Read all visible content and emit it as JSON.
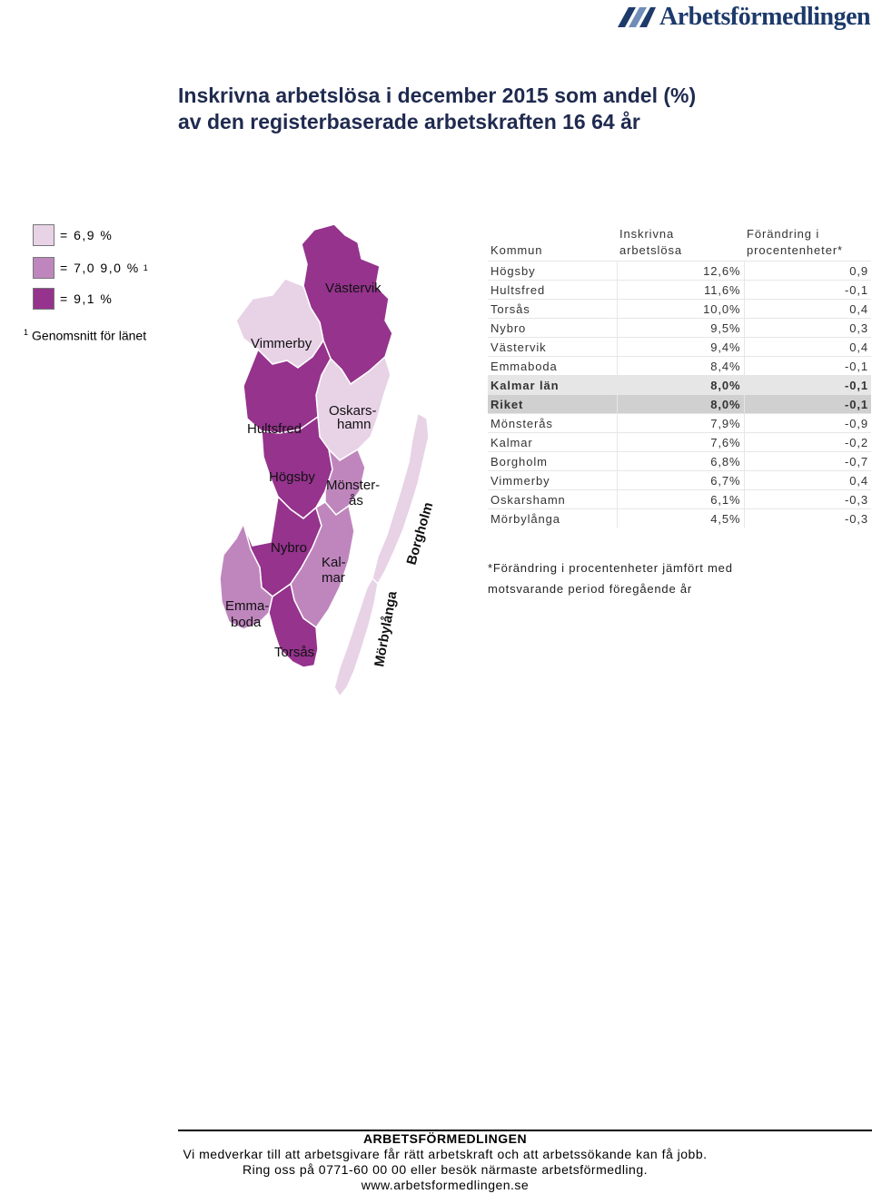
{
  "brand": {
    "name": "Arbetsförmedlingen",
    "color": "#1d3a6b"
  },
  "title": {
    "line1": "Inskrivna arbetslösa i december 2015 som andel (%)",
    "line2": "av den registerbaserade arbetskraften 16 64 år"
  },
  "legend": {
    "items": [
      {
        "label": "=     6,9 %",
        "color": "#e8d2e6"
      },
      {
        "label": "= 7,0  9,0 %",
        "color": "#bf86bd"
      },
      {
        "label": "= 9,1 %",
        "color": "#95338d"
      }
    ],
    "footnote_mark": "1",
    "footnote": "Genomsnitt för länet"
  },
  "map": {
    "labels": {
      "vastervik": "Västervik",
      "vimmerby": "Vimmerby",
      "oskarshamn_1": "Oskars-",
      "oskarshamn_2": "hamn",
      "hultsfred": "Hultsfred",
      "hogsby": "Högsby",
      "monsteras_1": "Mönster-",
      "monsteras_2": "ås",
      "nybro": "Nybro",
      "kalmar_1": "Kal-",
      "kalmar_2": "mar",
      "emmaboda_1": "Emma-",
      "emmaboda_2": "boda",
      "torsas": "Torsås",
      "borgholm": "Borgholm",
      "morbylanga": "Mörbylånga"
    }
  },
  "table": {
    "headers": {
      "kommun": "Kommun",
      "col2_1": "Inskrivna",
      "col2_2": "arbetslösa",
      "col3_1": "Förändring i",
      "col3_2": "procentenheter*"
    },
    "rows": [
      {
        "name": "Högsby",
        "share": "12,6%",
        "change": "0,9"
      },
      {
        "name": "Hultsfred",
        "share": "11,6%",
        "change": "-0,1"
      },
      {
        "name": "Torsås",
        "share": "10,0%",
        "change": "0,4"
      },
      {
        "name": "Nybro",
        "share": "9,5%",
        "change": "0,3"
      },
      {
        "name": "Västervik",
        "share": "9,4%",
        "change": "0,4"
      },
      {
        "name": "Emmaboda",
        "share": "8,4%",
        "change": "-0,1"
      },
      {
        "name": "Kalmar län",
        "share": "8,0%",
        "change": "-0,1",
        "highlight": "hl"
      },
      {
        "name": "Riket",
        "share": "8,0%",
        "change": "-0,1",
        "highlight": "hl2"
      },
      {
        "name": "Mönsterås",
        "share": "7,9%",
        "change": "-0,9"
      },
      {
        "name": "Kalmar",
        "share": "7,6%",
        "change": "-0,2"
      },
      {
        "name": "Borgholm",
        "share": "6,8%",
        "change": "-0,7"
      },
      {
        "name": "Vimmerby",
        "share": "6,7%",
        "change": "0,4"
      },
      {
        "name": "Oskarshamn",
        "share": "6,1%",
        "change": "-0,3"
      },
      {
        "name": "Mörbylånga",
        "share": "4,5%",
        "change": "-0,3"
      }
    ],
    "footnote_line1": "*Förändring i procentenheter jämfört med",
    "footnote_line2": "motsvarande period föregående år"
  },
  "footer": {
    "heading": "ARBETSFÖRMEDLINGEN",
    "line1": "Vi medverkar till att arbetsgivare får rätt arbetskraft och att arbetssökande kan få jobb.",
    "line2": "Ring oss på 0771-60 00 00 eller besök närmaste arbetsförmedling.",
    "line3": "www.arbetsformedlingen.se"
  }
}
